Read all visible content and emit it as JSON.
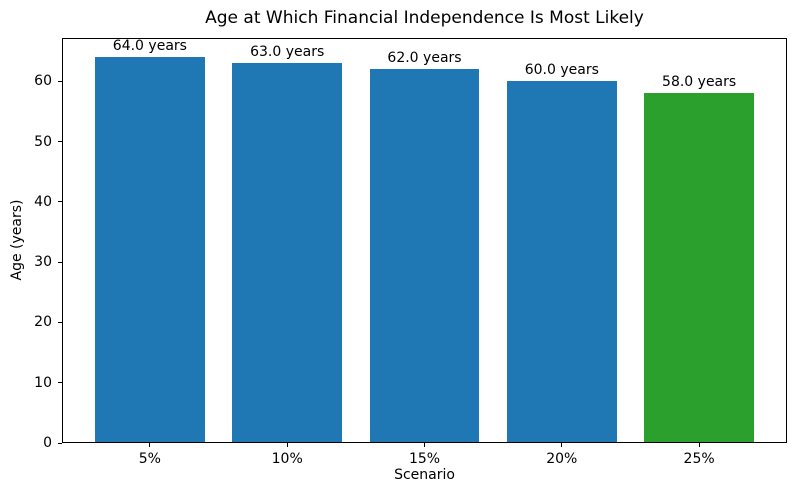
{
  "chart_data": {
    "type": "bar",
    "title": "Age at Which Financial Independence Is Most Likely",
    "xlabel": "Scenario",
    "ylabel": "Age (years)",
    "categories": [
      "5%",
      "10%",
      "15%",
      "20%",
      "25%"
    ],
    "values": [
      64.0,
      63.0,
      62.0,
      60.0,
      58.0
    ],
    "bar_labels": [
      "64.0 years",
      "63.0 years",
      "62.0 years",
      "60.0 years",
      "58.0 years"
    ],
    "bar_colors": [
      "#1f77b4",
      "#1f77b4",
      "#1f77b4",
      "#1f77b4",
      "#2ca02c"
    ],
    "ylim": [
      0,
      67.2
    ],
    "yticks": [
      0,
      10,
      20,
      30,
      40,
      50,
      60
    ],
    "grid": false,
    "legend": "none",
    "background_color": "#ffffff",
    "spine_color": "#000000"
  }
}
